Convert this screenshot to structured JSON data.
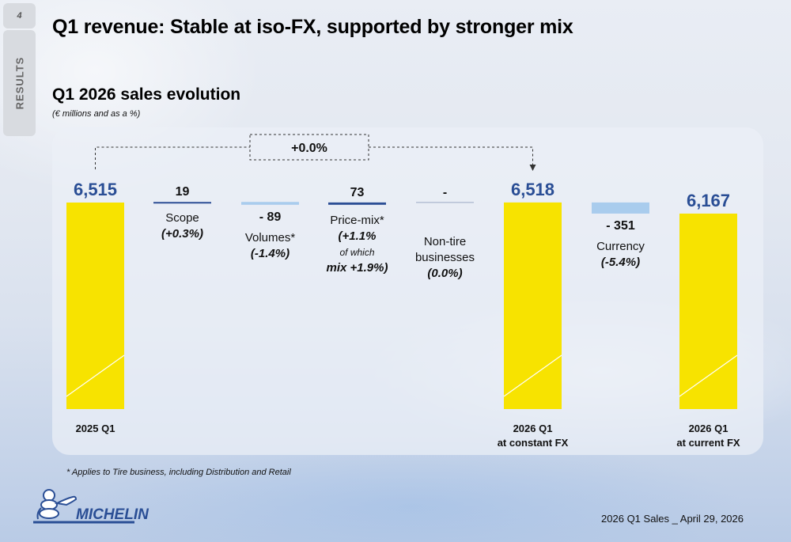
{
  "page": {
    "number": "4",
    "section": "RESULTS",
    "title": "Q1 revenue: Stable at iso-FX, supported by stronger mix",
    "footnote": "* Applies to Tire business, including Distribution and Retail",
    "footer": "2026 Q1 Sales _ April 29, 2026",
    "logo_text": "MICHELIN"
  },
  "colors": {
    "total": "#f7e300",
    "increase": "#2d4f96",
    "decrease": "#a9cced",
    "value_total": "#2a4e95",
    "neutral_line": "#9aa8c4"
  },
  "chart_data": {
    "type": "bar",
    "subtype": "waterfall",
    "title": "Q1 2026 sales evolution",
    "subtitle": "(€ millions and as a %)",
    "unit": "€ millions",
    "annotation": "+0.0%",
    "steps": [
      {
        "key": "start",
        "kind": "total",
        "value": 6515,
        "value_label": "6,515",
        "label_lines": [
          "2025 Q1"
        ]
      },
      {
        "key": "scope",
        "kind": "delta",
        "value": 19,
        "value_label": "19",
        "label_lines": [
          "Scope",
          "(+0.3%)"
        ]
      },
      {
        "key": "volumes",
        "kind": "delta",
        "value": -89,
        "value_label": "- 89",
        "label_lines": [
          "Volumes*",
          "(-1.4%)"
        ]
      },
      {
        "key": "pricemix",
        "kind": "delta",
        "value": 73,
        "value_label": "73",
        "label_lines": [
          "Price-mix*",
          "(+1.1%",
          "of which",
          "mix +1.9%)"
        ]
      },
      {
        "key": "nontire",
        "kind": "delta",
        "value": 0,
        "value_label": "-",
        "label_lines": [
          "Non-tire",
          "businesses",
          "(0.0%)"
        ]
      },
      {
        "key": "constfx",
        "kind": "total",
        "value": 6518,
        "value_label": "6,518",
        "label_lines": [
          "2026 Q1",
          "at constant FX"
        ]
      },
      {
        "key": "currency",
        "kind": "delta",
        "value": -351,
        "value_label": "- 351",
        "label_lines": [
          "Currency",
          "(-5.4%)"
        ]
      },
      {
        "key": "end",
        "kind": "total",
        "value": 6167,
        "value_label": "6,167",
        "label_lines": [
          "2026 Q1",
          "at current FX"
        ]
      }
    ]
  }
}
